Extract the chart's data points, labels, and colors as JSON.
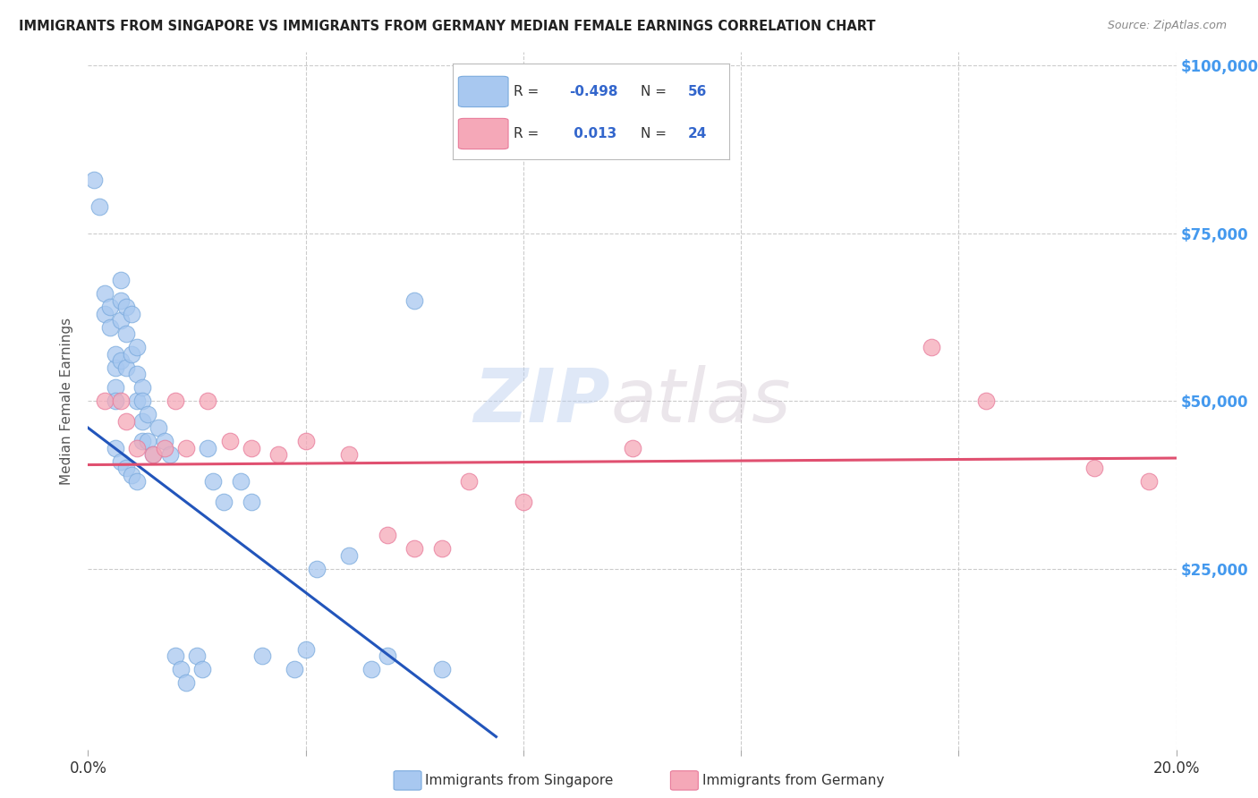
{
  "title": "IMMIGRANTS FROM SINGAPORE VS IMMIGRANTS FROM GERMANY MEDIAN FEMALE EARNINGS CORRELATION CHART",
  "source": "Source: ZipAtlas.com",
  "ylabel": "Median Female Earnings",
  "xlim": [
    0.0,
    0.2
  ],
  "ylim": [
    -2000,
    102000
  ],
  "singapore_color": "#a8c8f0",
  "germany_color": "#f5a8b8",
  "singapore_edge": "#7aaadd",
  "germany_edge": "#e87a9a",
  "line_singapore_color": "#2255bb",
  "line_germany_color": "#e05070",
  "grid_color": "#cccccc",
  "background_color": "#ffffff",
  "watermark_zip": "ZIP",
  "watermark_atlas": "atlas",
  "legend_label_singapore": "Immigrants from Singapore",
  "legend_label_germany": "Immigrants from Germany",
  "singapore_x": [
    0.001,
    0.002,
    0.003,
    0.003,
    0.004,
    0.004,
    0.005,
    0.005,
    0.005,
    0.005,
    0.006,
    0.006,
    0.006,
    0.006,
    0.007,
    0.007,
    0.007,
    0.008,
    0.008,
    0.009,
    0.009,
    0.009,
    0.01,
    0.01,
    0.01,
    0.01,
    0.011,
    0.011,
    0.012,
    0.013,
    0.014,
    0.015,
    0.016,
    0.017,
    0.018,
    0.02,
    0.021,
    0.022,
    0.023,
    0.025,
    0.028,
    0.03,
    0.032,
    0.038,
    0.04,
    0.042,
    0.048,
    0.052,
    0.055,
    0.06,
    0.065,
    0.005,
    0.006,
    0.007,
    0.008,
    0.009
  ],
  "singapore_y": [
    83000,
    79000,
    63000,
    66000,
    61000,
    64000,
    55000,
    57000,
    52000,
    50000,
    68000,
    65000,
    62000,
    56000,
    64000,
    60000,
    55000,
    63000,
    57000,
    58000,
    54000,
    50000,
    52000,
    50000,
    47000,
    44000,
    48000,
    44000,
    42000,
    46000,
    44000,
    42000,
    12000,
    10000,
    8000,
    12000,
    10000,
    43000,
    38000,
    35000,
    38000,
    35000,
    12000,
    10000,
    13000,
    25000,
    27000,
    10000,
    12000,
    65000,
    10000,
    43000,
    41000,
    40000,
    39000,
    38000
  ],
  "germany_x": [
    0.003,
    0.006,
    0.007,
    0.009,
    0.012,
    0.014,
    0.016,
    0.018,
    0.022,
    0.026,
    0.03,
    0.035,
    0.04,
    0.048,
    0.055,
    0.06,
    0.065,
    0.07,
    0.08,
    0.1,
    0.155,
    0.165,
    0.185,
    0.195
  ],
  "germany_y": [
    50000,
    50000,
    47000,
    43000,
    42000,
    43000,
    50000,
    43000,
    50000,
    44000,
    43000,
    42000,
    44000,
    42000,
    30000,
    28000,
    28000,
    38000,
    35000,
    43000,
    58000,
    50000,
    40000,
    38000
  ],
  "sg_line_x0": 0.0,
  "sg_line_y0": 46000,
  "sg_line_x1": 0.075,
  "sg_line_y1": 0,
  "de_line_x0": 0.0,
  "de_line_y0": 40500,
  "de_line_x1": 0.2,
  "de_line_y1": 41500
}
